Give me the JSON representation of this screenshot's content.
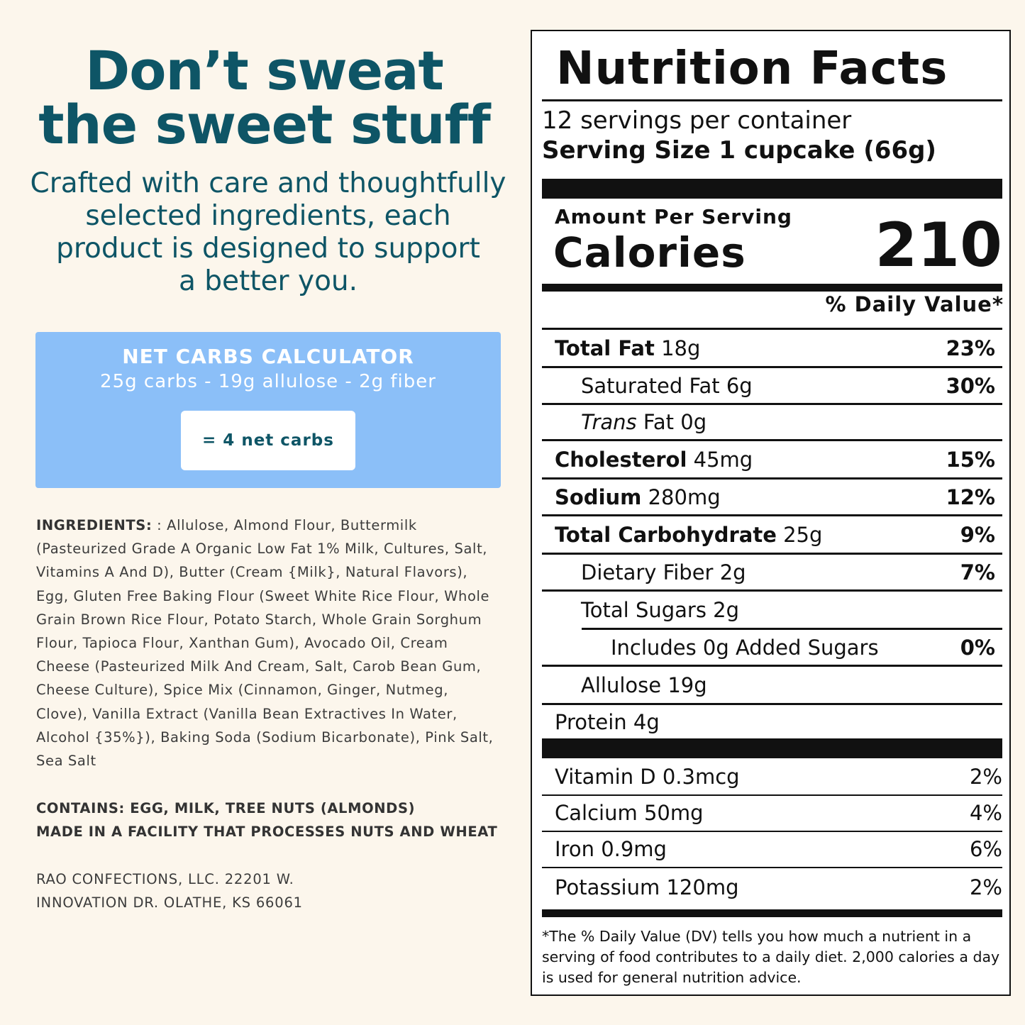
{
  "headline": [
    "Don’t sweat",
    "the sweet stuff"
  ],
  "tagline": [
    "Crafted with care and thoughtfully",
    "selected ingredients, each",
    "product is designed to support",
    "a better you."
  ],
  "calculator": {
    "title": "NET CARBS CALCULATOR",
    "formula": "25g carbs - 19g allulose - 2g fiber",
    "result": "= 4 net carbs"
  },
  "ingredients": {
    "label": "INGREDIENTS:",
    "text": ": Allulose, Almond Flour, Buttermilk (Pasteurized Grade A Organic Low Fat 1% Milk, Cultures, Salt, Vitamins A And D), Butter (Cream {Milk}, Natural Flavors), Egg, Gluten Free Baking Flour (Sweet White Rice Flour, Whole Grain Brown Rice Flour, Potato Starch, Whole Grain Sorghum Flour, Tapioca Flour, Xanthan Gum), Avocado Oil, Cream Cheese (Pasteurized Milk And Cream, Salt, Carob Bean Gum, Cheese Culture), Spice Mix (Cinnamon, Ginger, Nutmeg, Clove), Vanilla Extract (Vanilla Bean Extractives In Water, Alcohol {35%}), Baking Soda (Sodium Bicarbonate), Pink Salt, Sea Salt"
  },
  "contains": [
    "CONTAINS: EGG, MILK, TREE NUTS (ALMONDS)",
    "MADE IN A FACILITY THAT PROCESSES NUTS AND WHEAT"
  ],
  "address": [
    "RAO CONFECTIONS, LLC. 22201 W.",
    "INNOVATION DR. OLATHE, KS 66061"
  ],
  "nutrition": {
    "title": "Nutrition Facts",
    "servings": "12 servings per container",
    "serving_size_label": "Serving Size",
    "serving_size": "1 cupcake (66g)",
    "amount_per_serving": "Amount Per Serving",
    "calories_label": "Calories",
    "calories": 210,
    "daily_value_header": "% Daily Value*",
    "rows": [
      {
        "name": "Total Fat",
        "amount": "18g",
        "dv": "23%"
      },
      {
        "name": "Saturated Fat",
        "amount": "6g",
        "dv": "30%"
      },
      {
        "italic": "Trans",
        "name": "Fat",
        "amount": "0g"
      },
      {
        "name": "Cholesterol",
        "amount": "45mg",
        "dv": "15%"
      },
      {
        "name": "Sodium",
        "amount": "280mg",
        "dv": "12%"
      },
      {
        "name": "Total Carbohydrate",
        "amount": "25g",
        "dv": "9%"
      },
      {
        "name": "Dietary Fiber",
        "amount": "2g",
        "dv": "7%"
      },
      {
        "name": "Total Sugars",
        "amount": "2g"
      },
      {
        "name": "Includes 0g Added Sugars",
        "dv": "0%"
      },
      {
        "name": "Allulose",
        "amount": "19g"
      },
      {
        "name": "Protein",
        "amount": "4g"
      }
    ],
    "vitamins": [
      {
        "name": "Vitamin D",
        "amount": "0.3mcg",
        "dv": "2%"
      },
      {
        "name": "Calcium",
        "amount": "50mg",
        "dv": "4%"
      },
      {
        "name": "Iron",
        "amount": "0.9mg",
        "dv": "6%"
      },
      {
        "name": "Potassium",
        "amount": "120mg",
        "dv": "2%"
      }
    ],
    "footnote": "*The % Daily Value (DV) tells you how much a nutrient in a serving of food contributes to a daily diet. 2,000 calories a day is used for general nutrition advice."
  }
}
